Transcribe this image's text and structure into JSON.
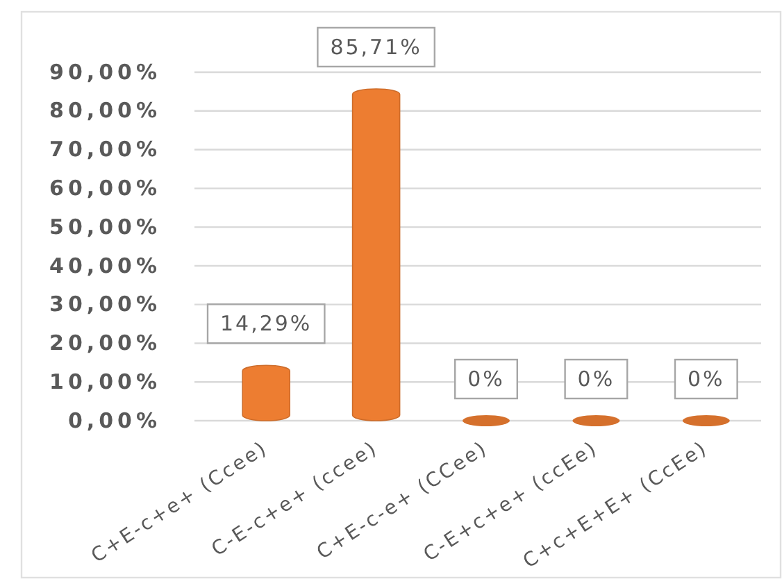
{
  "chart_data": {
    "type": "bar",
    "categories": [
      "C+E-c+e+ (Ccee)",
      "C-E-c+e+ (ccee)",
      "C+E-c-e+ (CCee)",
      "C-E+c+e+ (ccEe)",
      "C+c+E+E+ (CcEe)"
    ],
    "values": [
      14.29,
      85.71,
      0,
      0,
      0
    ],
    "value_labels": [
      "14,29%",
      "85,71%",
      "0%",
      "0%",
      "0%"
    ],
    "color": "#ed7d31",
    "ylim": [
      0,
      90
    ],
    "yticks": [
      {
        "value": 0,
        "label": "0,00%"
      },
      {
        "value": 10,
        "label": "10,00%"
      },
      {
        "value": 20,
        "label": "20,00%"
      },
      {
        "value": 30,
        "label": "30,00%"
      },
      {
        "value": 40,
        "label": "40,00%"
      },
      {
        "value": 50,
        "label": "50,00%"
      },
      {
        "value": 60,
        "label": "60,00%"
      },
      {
        "value": 70,
        "label": "70,00%"
      },
      {
        "value": 80,
        "label": "80,00%"
      },
      {
        "value": 90,
        "label": "90,00%"
      }
    ],
    "grid": "y"
  }
}
